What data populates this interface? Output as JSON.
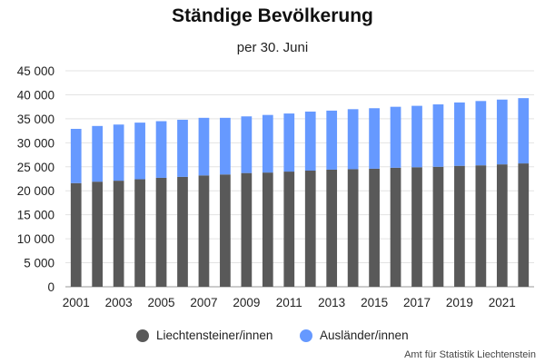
{
  "chart_data": {
    "type": "bar",
    "stacked": true,
    "title": "Ständige Bevölkerung",
    "subtitle": "per 30. Juni",
    "categories": [
      "2001",
      "2002",
      "2003",
      "2004",
      "2005",
      "2006",
      "2007",
      "2008",
      "2009",
      "2010",
      "2011",
      "2012",
      "2013",
      "2014",
      "2015",
      "2016",
      "2017",
      "2018",
      "2019",
      "2020",
      "2021",
      "2022"
    ],
    "tick_labels_x": [
      "2001",
      "2003",
      "2005",
      "2007",
      "2009",
      "2011",
      "2013",
      "2015",
      "2017",
      "2019",
      "2021"
    ],
    "tick_labels_y": [
      "0",
      "5 000",
      "10 000",
      "15 000",
      "20 000",
      "25 000",
      "30 000",
      "35 000",
      "40 000",
      "45 000"
    ],
    "ylim": [
      0,
      45000
    ],
    "grid": true,
    "legend_position": "bottom",
    "series": [
      {
        "name": "Liechtensteiner/innen",
        "color": "#595959",
        "values": [
          21600,
          21900,
          22100,
          22400,
          22700,
          22900,
          23200,
          23400,
          23700,
          23800,
          24000,
          24200,
          24400,
          24500,
          24600,
          24800,
          24900,
          25000,
          25200,
          25300,
          25500,
          25700
        ]
      },
      {
        "name": "Ausländer/innen",
        "color": "#6699ff",
        "values": [
          11300,
          11600,
          11700,
          11800,
          11800,
          11900,
          12000,
          11800,
          11800,
          12000,
          12100,
          12300,
          12300,
          12500,
          12600,
          12700,
          12800,
          13000,
          13200,
          13400,
          13500,
          13600
        ]
      }
    ],
    "source": "Amt für Statistik Liechtenstein"
  }
}
